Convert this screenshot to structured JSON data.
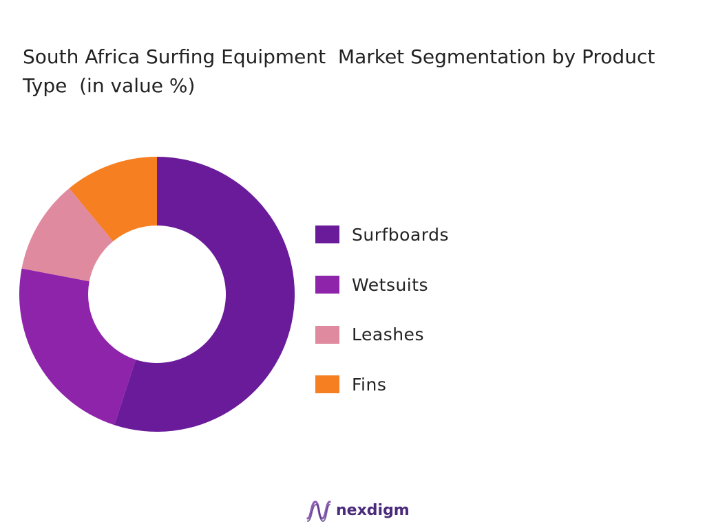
{
  "title": "South Africa Surfing Equipment  Market Segmentation by Product Type  (in value %)",
  "chart_data": {
    "type": "pie",
    "style": "donut",
    "categories": [
      "Surfboards",
      "Wetsuits",
      "Leashes",
      "Fins"
    ],
    "values": [
      55,
      23,
      11,
      11
    ],
    "colors": [
      "#6a1b9a",
      "#8e24aa",
      "#e08aa0",
      "#f57f21"
    ],
    "legend_position": "right",
    "start_angle_deg": 0,
    "direction": "clockwise"
  },
  "logo": {
    "text": "nexdigm",
    "icon": "nexdigm-wave-icon",
    "color": "#4a2a7a"
  }
}
